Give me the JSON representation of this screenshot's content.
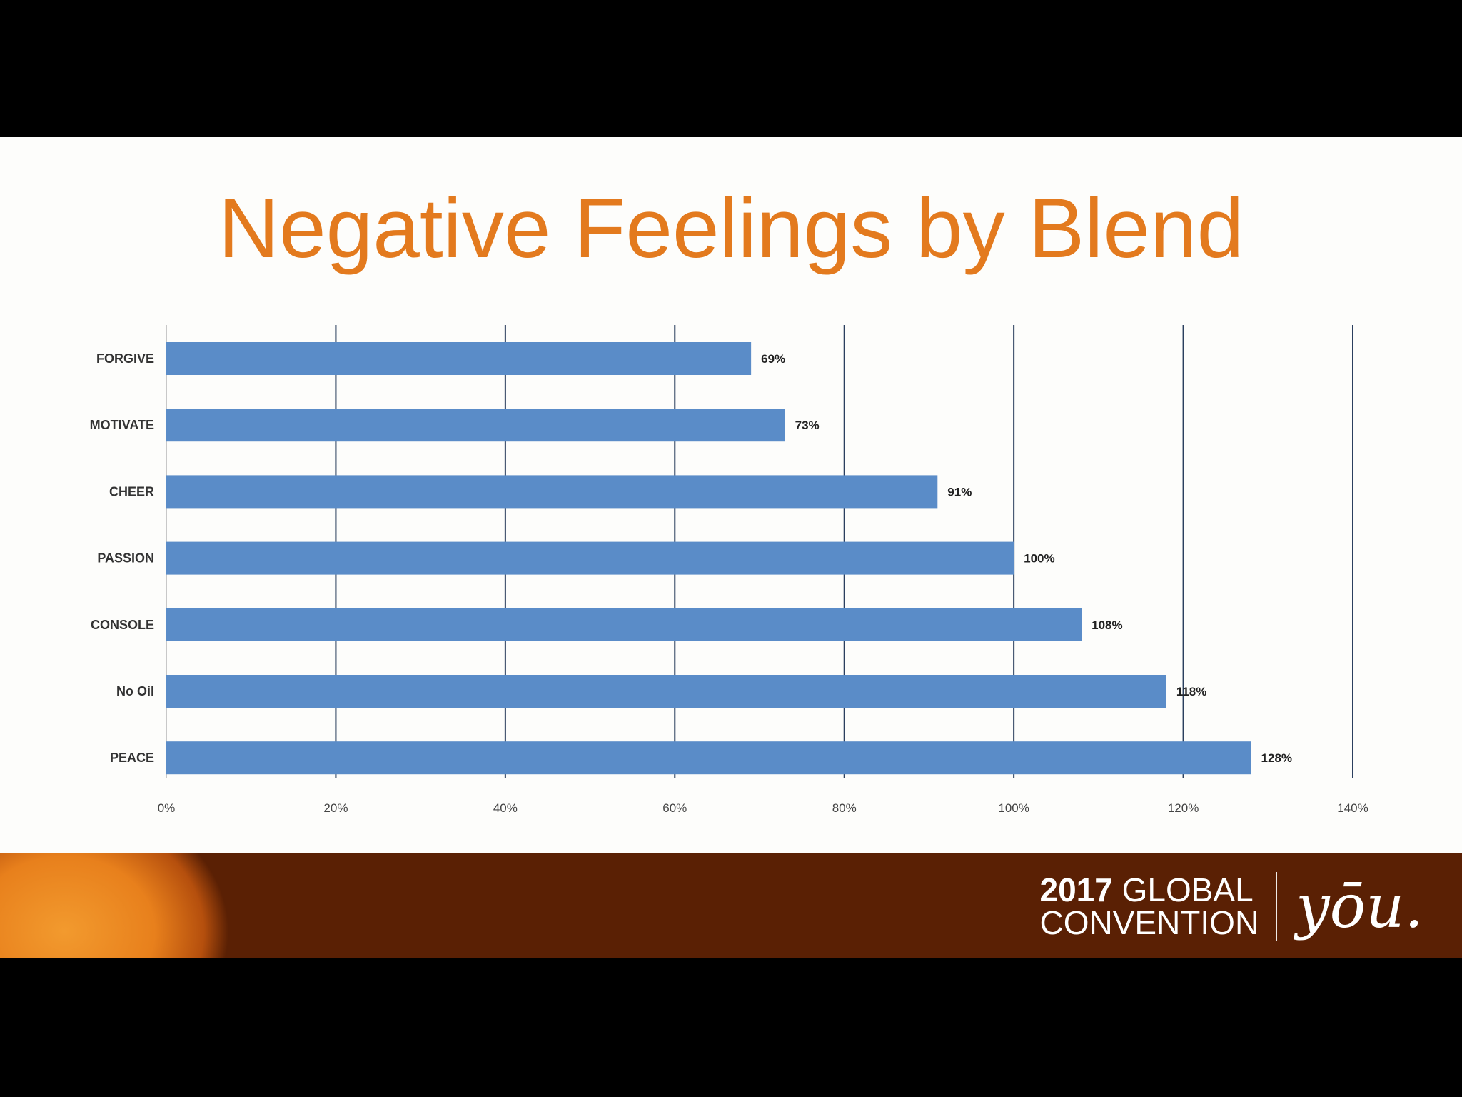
{
  "slide": {
    "title": "Negative Feelings by Blend"
  },
  "chart_data": {
    "type": "bar",
    "orientation": "horizontal",
    "title": "Negative Feelings by Blend",
    "categories": [
      "FORGIVE",
      "MOTIVATE",
      "CHEER",
      "PASSION",
      "CONSOLE",
      "No Oil",
      "PEACE"
    ],
    "values": [
      69,
      73,
      91,
      100,
      108,
      118,
      128
    ],
    "value_labels": [
      "69%",
      "73%",
      "91%",
      "100%",
      "108%",
      "118%",
      "128%"
    ],
    "xlim": [
      0,
      140
    ],
    "x_ticks": [
      0,
      20,
      40,
      60,
      80,
      100,
      120,
      140
    ],
    "x_tick_labels": [
      "0%",
      "20%",
      "40%",
      "60%",
      "80%",
      "100%",
      "120%",
      "140%"
    ],
    "grid": "vertical",
    "bar_color": "#5a8cc8",
    "legend": "none"
  },
  "footer": {
    "year": "2017",
    "line1": "GLOBAL",
    "line2": "CONVENTION",
    "logo_text": "yōu."
  },
  "colors": {
    "title": "#e37a1e",
    "bar": "#5a8cc8",
    "gridline": "#2b3f5e"
  }
}
